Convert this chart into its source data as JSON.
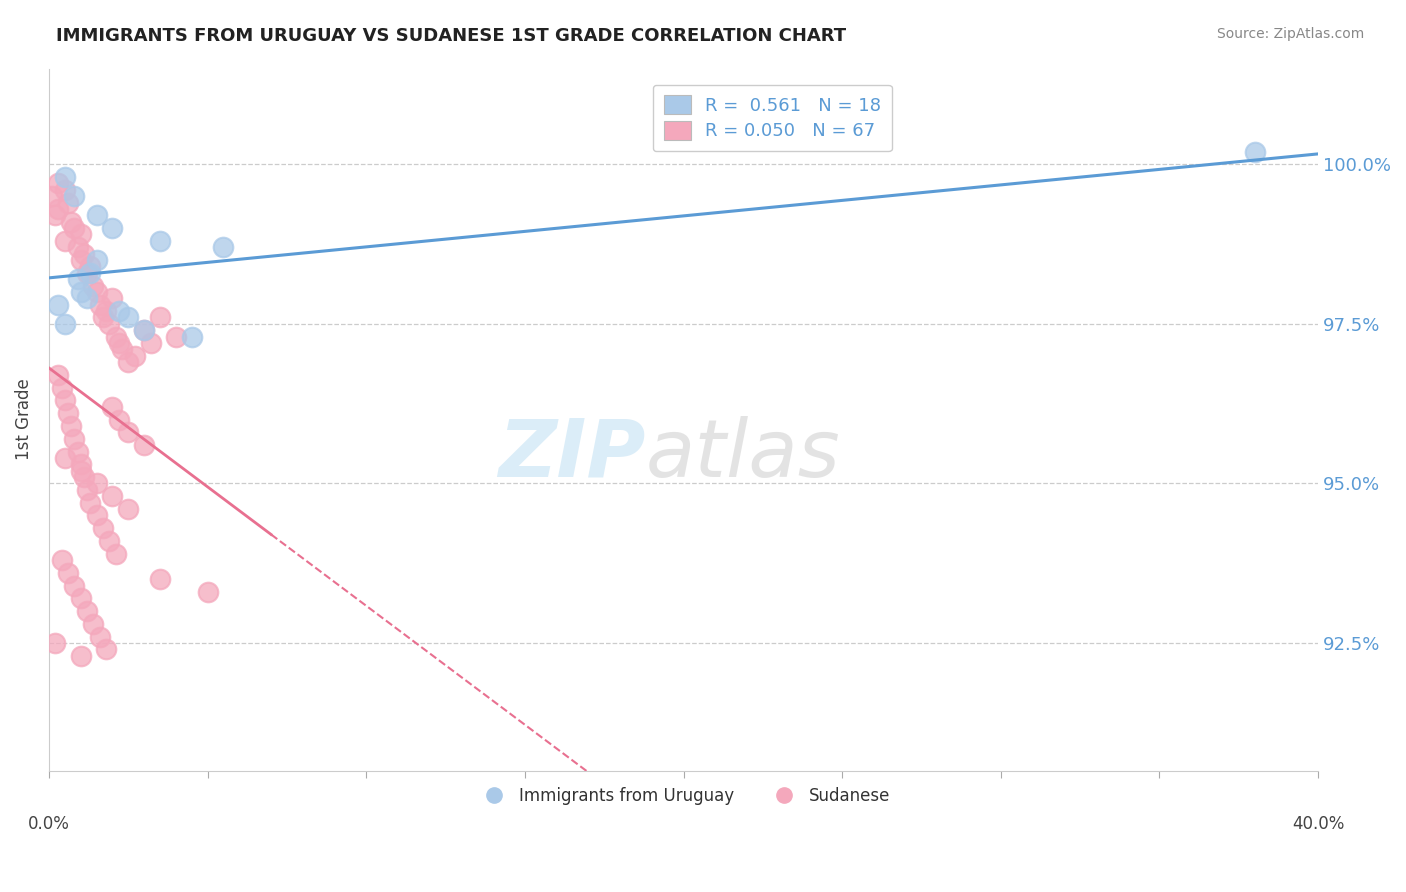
{
  "title": "IMMIGRANTS FROM URUGUAY VS SUDANESE 1ST GRADE CORRELATION CHART",
  "source": "Source: ZipAtlas.com",
  "ylabel": "1st Grade",
  "ytick_values": [
    92.5,
    95.0,
    97.5,
    100.0
  ],
  "xlim": [
    0.0,
    40.0
  ],
  "ylim": [
    90.5,
    101.5
  ],
  "legend_blue_label": "R =  0.561   N = 18",
  "legend_pink_label": "R = 0.050   N = 67",
  "legend_bottom_blue": "Immigrants from Uruguay",
  "legend_bottom_pink": "Sudanese",
  "blue_color": "#aac9e8",
  "pink_color": "#f4a8bc",
  "blue_line_color": "#5b9bd5",
  "pink_line_color": "#e87090",
  "dashed_line_color": "#e87090",
  "blue_scatter_x": [
    0.3,
    0.5,
    0.5,
    0.8,
    0.9,
    1.0,
    1.2,
    1.3,
    1.5,
    1.5,
    2.0,
    2.2,
    2.5,
    3.0,
    3.5,
    4.5,
    5.5,
    38.0
  ],
  "blue_scatter_y": [
    97.8,
    97.5,
    99.8,
    99.5,
    98.2,
    98.0,
    97.9,
    98.3,
    98.5,
    99.2,
    99.0,
    97.7,
    97.6,
    97.4,
    98.8,
    97.3,
    98.7,
    100.2
  ],
  "pink_scatter_x": [
    0.1,
    0.2,
    0.3,
    0.3,
    0.5,
    0.5,
    0.6,
    0.7,
    0.8,
    0.9,
    1.0,
    1.0,
    1.1,
    1.2,
    1.3,
    1.4,
    1.5,
    1.6,
    1.7,
    1.8,
    1.9,
    2.0,
    2.1,
    2.2,
    2.3,
    2.5,
    2.7,
    3.0,
    3.2,
    3.5,
    4.0,
    0.3,
    0.4,
    0.5,
    0.6,
    0.7,
    0.8,
    0.9,
    1.0,
    1.1,
    1.2,
    1.3,
    1.5,
    1.7,
    1.9,
    2.1,
    0.4,
    0.6,
    0.8,
    1.0,
    1.2,
    1.4,
    1.6,
    1.8,
    2.0,
    2.2,
    2.5,
    3.0,
    0.5,
    1.0,
    1.5,
    2.0,
    2.5,
    3.5,
    5.0,
    0.2,
    1.0
  ],
  "pink_scatter_y": [
    99.5,
    99.2,
    99.7,
    99.3,
    99.6,
    98.8,
    99.4,
    99.1,
    99.0,
    98.7,
    98.9,
    98.5,
    98.6,
    98.3,
    98.4,
    98.1,
    98.0,
    97.8,
    97.6,
    97.7,
    97.5,
    97.9,
    97.3,
    97.2,
    97.1,
    96.9,
    97.0,
    97.4,
    97.2,
    97.6,
    97.3,
    96.7,
    96.5,
    96.3,
    96.1,
    95.9,
    95.7,
    95.5,
    95.3,
    95.1,
    94.9,
    94.7,
    94.5,
    94.3,
    94.1,
    93.9,
    93.8,
    93.6,
    93.4,
    93.2,
    93.0,
    92.8,
    92.6,
    92.4,
    96.2,
    96.0,
    95.8,
    95.6,
    95.4,
    95.2,
    95.0,
    94.8,
    94.6,
    93.5,
    93.3,
    92.5,
    92.3
  ]
}
